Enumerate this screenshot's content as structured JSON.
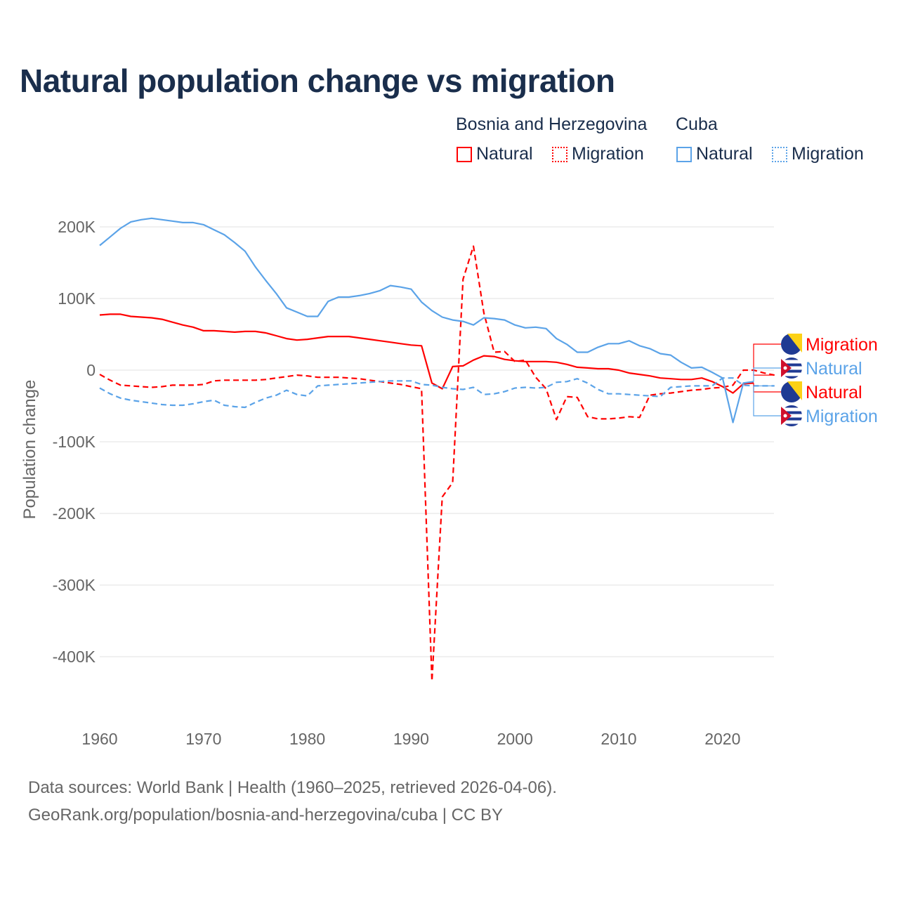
{
  "title": "Natural population change vs migration",
  "legend": {
    "groups": [
      {
        "name": "Bosnia and Herzegovina",
        "color": "#ff0000",
        "items": [
          "Natural",
          "Migration"
        ]
      },
      {
        "name": "Cuba",
        "color": "#5ba3e8",
        "items": [
          "Natural",
          "Migration"
        ]
      }
    ]
  },
  "end_labels": [
    {
      "text": "Migration",
      "country": "Bosnia and Herzegovina",
      "flag": "bosnia-flag-icon",
      "color": "#ff0000"
    },
    {
      "text": "Natural",
      "country": "Cuba",
      "flag": "cuba-flag-icon",
      "color": "#5ba3e8"
    },
    {
      "text": "Natural",
      "country": "Bosnia and Herzegovina",
      "flag": "bosnia-flag-icon",
      "color": "#ff0000"
    },
    {
      "text": "Migration",
      "country": "Cuba",
      "flag": "cuba-flag-icon",
      "color": "#5ba3e8"
    }
  ],
  "footer": {
    "line1": "Data sources: World Bank | Health (1960–2025, retrieved 2026-04-06).",
    "line2": "GeoRank.org/population/bosnia-and-herzegovina/cuba | CC BY"
  },
  "chart_data": {
    "type": "line",
    "title": "Natural population change vs migration",
    "xlabel": "",
    "ylabel": "Population change",
    "xlim": [
      1960,
      2025
    ],
    "ylim": [
      -450000,
      220000
    ],
    "x_ticks": [
      1960,
      1970,
      1980,
      1990,
      2000,
      2010,
      2020
    ],
    "x_tick_labels": [
      "1960",
      "1970",
      "1980",
      "1990",
      "2000",
      "2010",
      "2020"
    ],
    "y_ticks": [
      200000,
      100000,
      0,
      -100000,
      -200000,
      -300000,
      -400000
    ],
    "y_tick_labels": [
      "200K",
      "100K",
      "0",
      "-100K",
      "-200K",
      "-300K",
      "-400K"
    ],
    "grid": true,
    "legend_position": "top-right",
    "units": "thousands",
    "series": [
      {
        "name": "Bosnia and Herzegovina Natural",
        "color": "#ff0000",
        "dash": false,
        "start": 1960,
        "values": [
          77,
          78,
          78,
          75,
          74,
          73,
          71,
          67,
          63,
          60,
          55,
          55,
          54,
          53,
          54,
          54,
          52,
          48,
          44,
          42,
          43,
          45,
          47,
          47,
          47,
          45,
          43,
          41,
          39,
          37,
          35,
          34,
          -18,
          -26,
          5,
          6,
          14,
          20,
          19,
          15,
          13,
          12,
          12,
          12,
          11,
          8,
          4,
          3,
          2,
          2,
          0,
          -4,
          -6,
          -8,
          -11,
          -12,
          -13,
          -13,
          -11,
          -16,
          -23,
          -32,
          -19,
          -18
        ]
      },
      {
        "name": "Bosnia and Herzegovina Migration",
        "color": "#ff0000",
        "dash": true,
        "start": 1960,
        "values": [
          -6,
          -14,
          -21,
          -22,
          -23,
          -24,
          -23,
          -21,
          -21,
          -21,
          -20,
          -15,
          -14,
          -14,
          -14,
          -14,
          -13,
          -11,
          -9,
          -7,
          -8,
          -10,
          -10,
          -10,
          -11,
          -12,
          -14,
          -16,
          -18,
          -20,
          -23,
          -26,
          -434,
          -177,
          -157,
          127,
          173,
          80,
          25,
          26,
          12,
          14,
          -10,
          -26,
          -69,
          -37,
          -38,
          -65,
          -68,
          -68,
          -67,
          -65,
          -66,
          -35,
          -33,
          -32,
          -30,
          -28,
          -27,
          -25,
          -24,
          -21,
          0,
          0,
          -4,
          -7
        ]
      },
      {
        "name": "Cuba Natural",
        "color": "#5ba3e8",
        "dash": false,
        "start": 1960,
        "values": [
          174,
          186,
          198,
          207,
          210,
          212,
          210,
          208,
          206,
          206,
          203,
          196,
          189,
          178,
          166,
          144,
          125,
          107,
          87,
          81,
          75,
          75,
          96,
          102,
          102,
          104,
          107,
          111,
          118,
          116,
          113,
          95,
          83,
          74,
          70,
          68,
          63,
          73,
          72,
          70,
          63,
          59,
          60,
          58,
          44,
          36,
          25,
          25,
          32,
          37,
          37,
          41,
          34,
          30,
          23,
          21,
          11,
          3,
          4,
          -3,
          -11,
          -73,
          -18,
          -16
        ]
      },
      {
        "name": "Cuba Migration",
        "color": "#5ba3e8",
        "dash": true,
        "start": 1960,
        "values": [
          -25,
          -33,
          -39,
          -42,
          -44,
          -46,
          -48,
          -49,
          -49,
          -47,
          -44,
          -42,
          -49,
          -51,
          -52,
          -45,
          -39,
          -35,
          -28,
          -34,
          -36,
          -22,
          -21,
          -20,
          -19,
          -18,
          -17,
          -16,
          -15,
          -15,
          -15,
          -20,
          -21,
          -24,
          -26,
          -27,
          -24,
          -34,
          -33,
          -30,
          -25,
          -24,
          -25,
          -24,
          -17,
          -16,
          -12,
          -18,
          -27,
          -33,
          -33,
          -34,
          -35,
          -36,
          -37,
          -24,
          -23,
          -22,
          -22,
          -22,
          -11,
          -11,
          -21,
          -22,
          -22,
          -22
        ]
      }
    ]
  }
}
